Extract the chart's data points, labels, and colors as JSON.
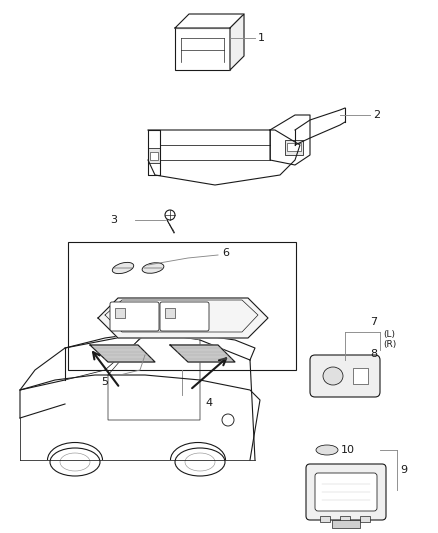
{
  "bg_color": "#ffffff",
  "line_color": "#1a1a1a",
  "gray_color": "#888888",
  "light_gray": "#cccccc",
  "fig_width": 4.38,
  "fig_height": 5.33,
  "dpi": 100
}
